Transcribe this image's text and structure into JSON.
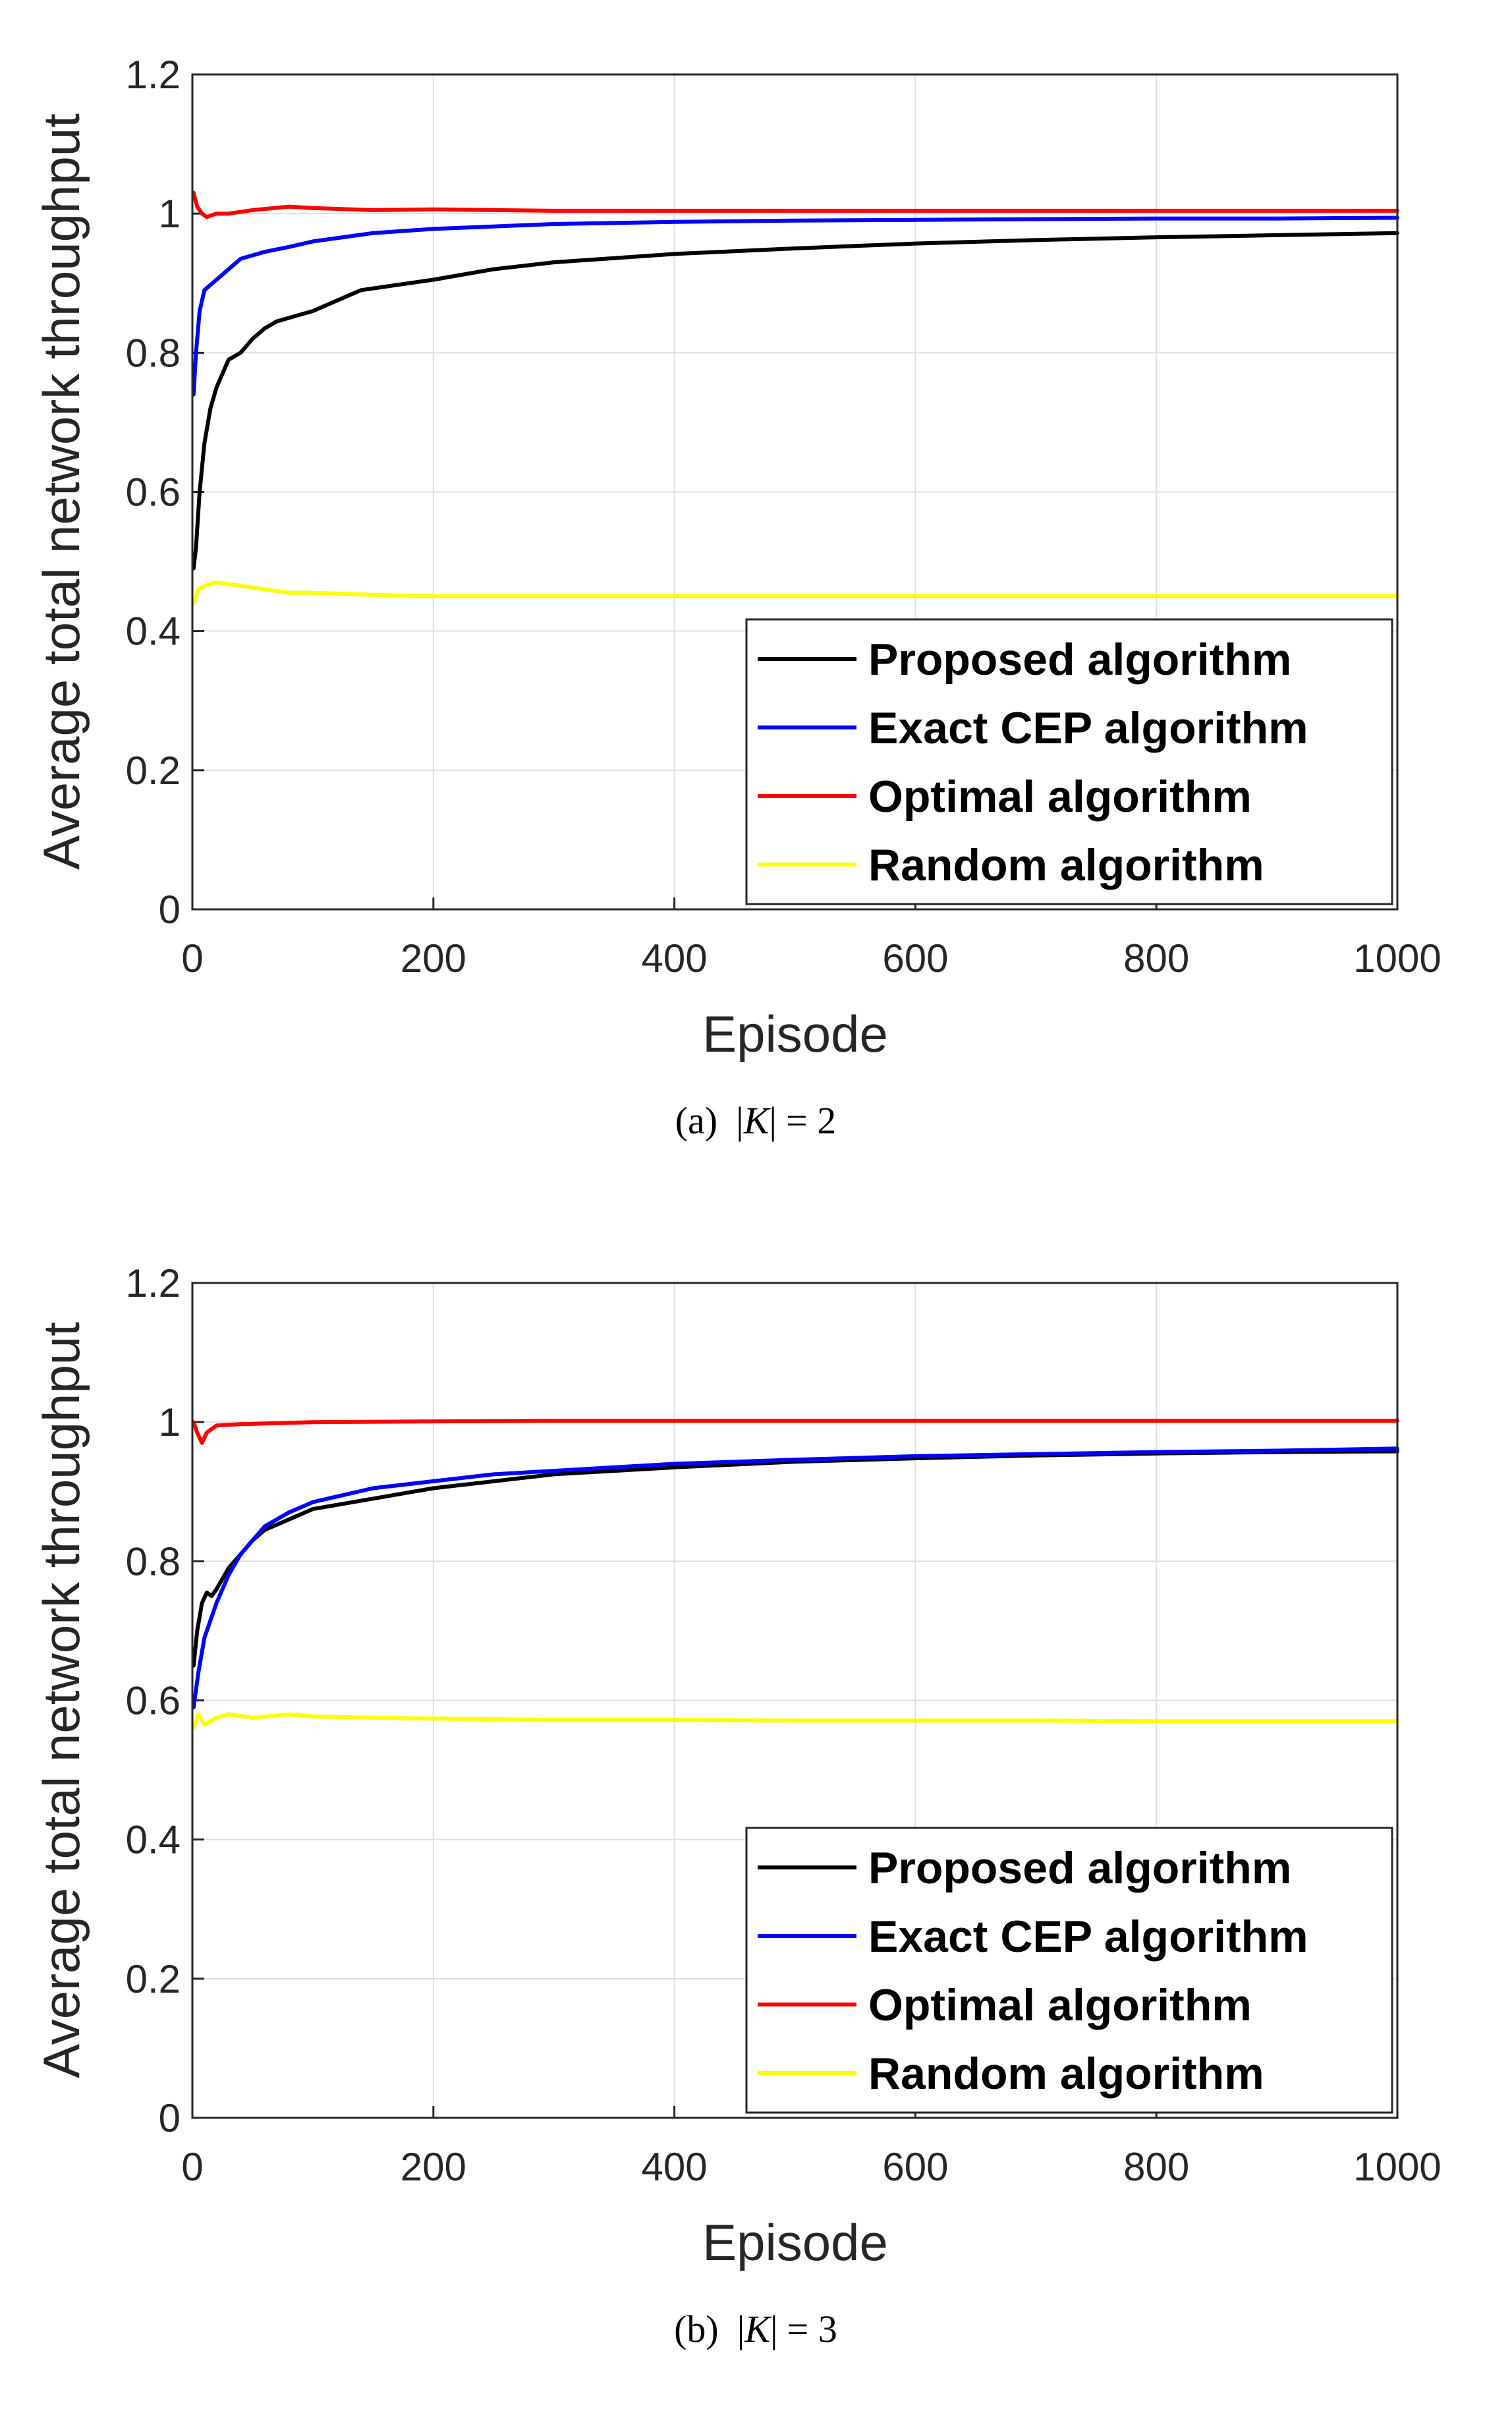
{
  "chart_data": [
    {
      "type": "line",
      "caption": "(a)",
      "caption_math": {
        "var": "K",
        "value": "= 2"
      },
      "xlabel": "Episode",
      "ylabel": "Average total network throughput",
      "xlim": [
        0,
        1000
      ],
      "ylim": [
        0,
        1.2
      ],
      "grid": true,
      "legend_position": "bottom-right",
      "xticks": [
        "0",
        "200",
        "400",
        "600",
        "800",
        "1000"
      ],
      "yticks": [
        "0",
        "0.2",
        "0.4",
        "0.6",
        "0.8",
        "1",
        "1.2"
      ],
      "series": [
        {
          "name": "Proposed algorithm",
          "color": "#000000",
          "points": [
            [
              1,
              0.49
            ],
            [
              3,
              0.52
            ],
            [
              6,
              0.6
            ],
            [
              10,
              0.67
            ],
            [
              15,
              0.72
            ],
            [
              20,
              0.75
            ],
            [
              30,
              0.79
            ],
            [
              40,
              0.8
            ],
            [
              50,
              0.82
            ],
            [
              60,
              0.835
            ],
            [
              70,
              0.845
            ],
            [
              80,
              0.85
            ],
            [
              100,
              0.86
            ],
            [
              120,
              0.875
            ],
            [
              140,
              0.89
            ],
            [
              160,
              0.895
            ],
            [
              200,
              0.905
            ],
            [
              250,
              0.92
            ],
            [
              300,
              0.93
            ],
            [
              400,
              0.942
            ],
            [
              500,
              0.95
            ],
            [
              600,
              0.957
            ],
            [
              700,
              0.962
            ],
            [
              800,
              0.966
            ],
            [
              900,
              0.969
            ],
            [
              1000,
              0.972
            ]
          ]
        },
        {
          "name": "Exact CEP algorithm",
          "color": "#0000ff",
          "points": [
            [
              1,
              0.74
            ],
            [
              3,
              0.8
            ],
            [
              6,
              0.86
            ],
            [
              10,
              0.89
            ],
            [
              20,
              0.905
            ],
            [
              30,
              0.92
            ],
            [
              40,
              0.935
            ],
            [
              60,
              0.945
            ],
            [
              80,
              0.952
            ],
            [
              100,
              0.96
            ],
            [
              150,
              0.972
            ],
            [
              200,
              0.978
            ],
            [
              300,
              0.985
            ],
            [
              400,
              0.988
            ],
            [
              500,
              0.99
            ],
            [
              600,
              0.991
            ],
            [
              700,
              0.992
            ],
            [
              800,
              0.993
            ],
            [
              900,
              0.993
            ],
            [
              1000,
              0.994
            ]
          ]
        },
        {
          "name": "Optimal algorithm",
          "color": "#ff0000",
          "points": [
            [
              1,
              1.03
            ],
            [
              4,
              1.01
            ],
            [
              8,
              1.0
            ],
            [
              12,
              0.995
            ],
            [
              20,
              1.0
            ],
            [
              30,
              1.0
            ],
            [
              50,
              1.005
            ],
            [
              80,
              1.01
            ],
            [
              100,
              1.008
            ],
            [
              150,
              1.005
            ],
            [
              200,
              1.006
            ],
            [
              300,
              1.004
            ],
            [
              400,
              1.004
            ],
            [
              500,
              1.004
            ],
            [
              600,
              1.004
            ],
            [
              700,
              1.004
            ],
            [
              800,
              1.004
            ],
            [
              900,
              1.004
            ],
            [
              1000,
              1.004
            ]
          ]
        },
        {
          "name": "Random algorithm",
          "color": "#ffff00",
          "points": [
            [
              1,
              0.44
            ],
            [
              5,
              0.46
            ],
            [
              10,
              0.465
            ],
            [
              20,
              0.47
            ],
            [
              40,
              0.465
            ],
            [
              60,
              0.46
            ],
            [
              80,
              0.455
            ],
            [
              100,
              0.455
            ],
            [
              150,
              0.452
            ],
            [
              200,
              0.45
            ],
            [
              300,
              0.45
            ],
            [
              400,
              0.45
            ],
            [
              500,
              0.45
            ],
            [
              600,
              0.45
            ],
            [
              700,
              0.45
            ],
            [
              800,
              0.45
            ],
            [
              900,
              0.45
            ],
            [
              1000,
              0.45
            ]
          ]
        }
      ]
    },
    {
      "type": "line",
      "caption": "(b)",
      "caption_math": {
        "var": "K",
        "value": "= 3"
      },
      "xlabel": "Episode",
      "ylabel": "Average total network throughput",
      "xlim": [
        0,
        1000
      ],
      "ylim": [
        0,
        1.2
      ],
      "grid": true,
      "legend_position": "bottom-right",
      "xticks": [
        "0",
        "200",
        "400",
        "600",
        "800",
        "1000"
      ],
      "yticks": [
        "0",
        "0.2",
        "0.4",
        "0.6",
        "0.8",
        "1",
        "1.2"
      ],
      "series": [
        {
          "name": "Proposed algorithm",
          "color": "#000000",
          "points": [
            [
              1,
              0.65
            ],
            [
              4,
              0.7
            ],
            [
              8,
              0.74
            ],
            [
              12,
              0.755
            ],
            [
              16,
              0.75
            ],
            [
              20,
              0.76
            ],
            [
              30,
              0.79
            ],
            [
              40,
              0.81
            ],
            [
              50,
              0.83
            ],
            [
              60,
              0.845
            ],
            [
              80,
              0.86
            ],
            [
              100,
              0.875
            ],
            [
              150,
              0.89
            ],
            [
              200,
              0.905
            ],
            [
              300,
              0.925
            ],
            [
              400,
              0.935
            ],
            [
              500,
              0.943
            ],
            [
              600,
              0.948
            ],
            [
              700,
              0.952
            ],
            [
              800,
              0.955
            ],
            [
              900,
              0.957
            ],
            [
              1000,
              0.958
            ]
          ]
        },
        {
          "name": "Exact CEP algorithm",
          "color": "#0000ff",
          "points": [
            [
              1,
              0.59
            ],
            [
              5,
              0.64
            ],
            [
              10,
              0.69
            ],
            [
              20,
              0.74
            ],
            [
              30,
              0.78
            ],
            [
              40,
              0.81
            ],
            [
              50,
              0.83
            ],
            [
              60,
              0.85
            ],
            [
              80,
              0.87
            ],
            [
              100,
              0.885
            ],
            [
              150,
              0.905
            ],
            [
              200,
              0.915
            ],
            [
              250,
              0.925
            ],
            [
              300,
              0.93
            ],
            [
              400,
              0.94
            ],
            [
              500,
              0.946
            ],
            [
              600,
              0.951
            ],
            [
              700,
              0.954
            ],
            [
              800,
              0.957
            ],
            [
              900,
              0.959
            ],
            [
              1000,
              0.962
            ]
          ]
        },
        {
          "name": "Optimal algorithm",
          "color": "#ff0000",
          "points": [
            [
              1,
              1.0
            ],
            [
              4,
              0.985
            ],
            [
              8,
              0.97
            ],
            [
              12,
              0.985
            ],
            [
              20,
              0.995
            ],
            [
              40,
              0.997
            ],
            [
              60,
              0.998
            ],
            [
              100,
              1.0
            ],
            [
              200,
              1.001
            ],
            [
              300,
              1.002
            ],
            [
              400,
              1.002
            ],
            [
              500,
              1.002
            ],
            [
              600,
              1.002
            ],
            [
              700,
              1.002
            ],
            [
              800,
              1.002
            ],
            [
              900,
              1.002
            ],
            [
              1000,
              1.002
            ]
          ]
        },
        {
          "name": "Random algorithm",
          "color": "#ffff00",
          "points": [
            [
              1,
              0.56
            ],
            [
              5,
              0.58
            ],
            [
              10,
              0.565
            ],
            [
              15,
              0.57
            ],
            [
              20,
              0.575
            ],
            [
              30,
              0.58
            ],
            [
              50,
              0.575
            ],
            [
              80,
              0.58
            ],
            [
              100,
              0.577
            ],
            [
              150,
              0.575
            ],
            [
              200,
              0.574
            ],
            [
              300,
              0.572
            ],
            [
              400,
              0.572
            ],
            [
              500,
              0.571
            ],
            [
              600,
              0.571
            ],
            [
              700,
              0.571
            ],
            [
              800,
              0.57
            ],
            [
              900,
              0.57
            ],
            [
              1000,
              0.57
            ]
          ]
        }
      ]
    }
  ]
}
